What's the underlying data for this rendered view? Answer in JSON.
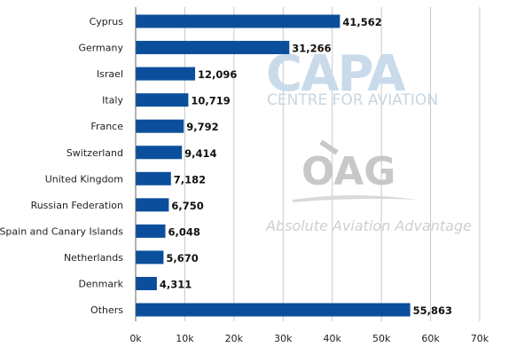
{
  "chart_data": {
    "type": "bar",
    "orientation": "horizontal",
    "categories": [
      "Cyprus",
      "Germany",
      "Israel",
      "Italy",
      "France",
      "Switzerland",
      "United Kingdom",
      "Russian Federation",
      "Spain and Canary Islands",
      "Netherlands",
      "Denmark",
      "Others"
    ],
    "values": [
      41562,
      31266,
      12096,
      10719,
      9792,
      9414,
      7182,
      6750,
      6048,
      5670,
      4311,
      55863
    ],
    "value_labels": [
      "41,562",
      "31,266",
      "12,096",
      "10,719",
      "9,792",
      "9,414",
      "7,182",
      "6,750",
      "6,048",
      "5,670",
      "4,311",
      "55,863"
    ],
    "title": "",
    "xlabel": "",
    "ylabel": "",
    "xlim": [
      0,
      70000
    ],
    "x_ticks": [
      0,
      10000,
      20000,
      30000,
      40000,
      50000,
      60000,
      70000
    ],
    "x_tick_labels": [
      "0k",
      "10k",
      "20k",
      "30k",
      "40k",
      "50k",
      "60k",
      "70k"
    ],
    "grid": "vertical",
    "legend": "none",
    "bar_color": "#0b4f9c"
  },
  "watermarks": {
    "capa": {
      "logo": "CAPA",
      "tagline": "CENTRE FOR AVIATION",
      "color": "#c9dbea"
    },
    "oag": {
      "logo": "OAG",
      "tagline": "Absolute Aviation Advantage",
      "color": "#c8c8c8"
    }
  },
  "colors": {
    "grid": "#c8c8c8",
    "axis": "#666666",
    "background": "#ffffff"
  }
}
